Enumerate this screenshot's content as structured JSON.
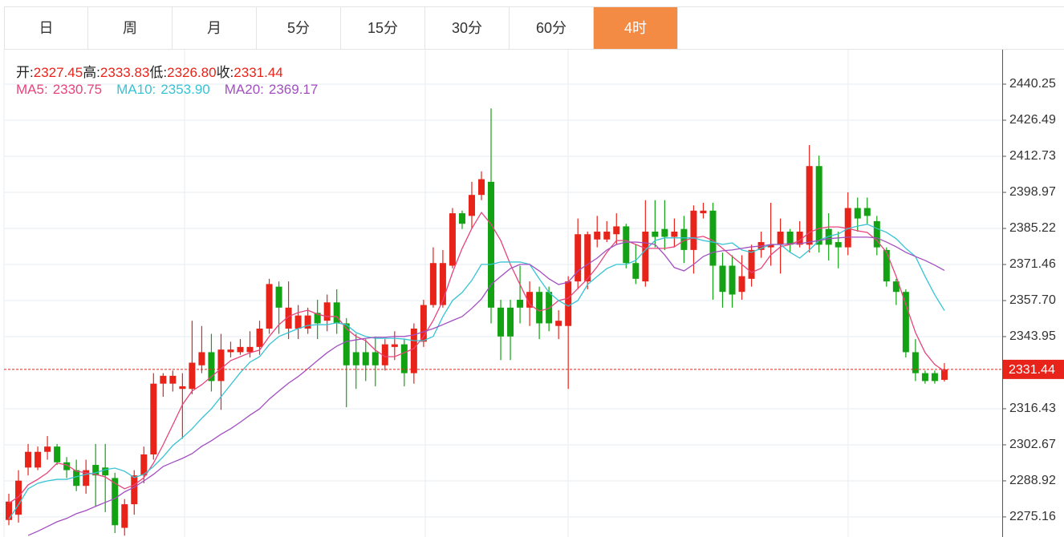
{
  "tabs": [
    "日",
    "周",
    "月",
    "5分",
    "15分",
    "30分",
    "60分",
    "4时"
  ],
  "active_tab": 7,
  "chart_data": {
    "type": "candlestick",
    "info": [
      {
        "label": "开:",
        "text": "2327.45"
      },
      {
        "label": "高:",
        "text": "2333.83"
      },
      {
        "label": "低:",
        "text": "2326.80"
      },
      {
        "label": "收:",
        "text": "2331.44"
      }
    ],
    "up_color": "#e8231a",
    "down_color": "#13a213",
    "ylim": [
      2267.5,
      2453.4
    ],
    "yticks": [
      2440.25,
      2426.49,
      2412.73,
      2398.97,
      2385.22,
      2371.46,
      {
        "value": 2357.7,
        "label": "2357.70"
      },
      2343.95,
      2316.43,
      2302.67,
      2288.92,
      2275.16
    ],
    "grid": true,
    "open": [
      2274,
      2276,
      2294,
      2294,
      2300,
      2302,
      2296,
      2293,
      2287,
      2295,
      2294,
      2290,
      2271,
      2280,
      2291,
      2299,
      2326,
      2326,
      2324,
      2324,
      2333,
      2338,
      2327,
      2338,
      2338,
      2338,
      2340,
      2347,
      2363,
      2347,
      2347,
      2347,
      2353,
      2350,
      2357,
      2349,
      2338,
      2338,
      2338,
      2333,
      2340,
      2341,
      2330,
      2342,
      2356,
      2356,
      2371,
      2391,
      2390,
      2398,
      2403,
      2355,
      2355,
      2358,
      2355,
      2361,
      2361,
      2348,
      2348,
      2365,
      2365,
      2381,
      2381,
      2383,
      2386,
      2372,
      2365,
      2384,
      2385,
      2382,
      2385,
      2377,
      2391,
      2392,
      2371,
      2371,
      2361,
      2366,
      2377,
      2378,
      2379,
      2384,
      2379,
      2379,
      2409,
      2385,
      2380,
      2378,
      2393,
      2393,
      2388,
      2377,
      2365,
      2361,
      2338,
      2330,
      2330,
      2327.45
    ],
    "high": [
      2284,
      2293,
      2303,
      2302,
      2306,
      2303,
      2298,
      2297,
      2297,
      2303,
      2303,
      2292,
      2282,
      2293,
      2302,
      2330,
      2330,
      2331,
      2330,
      2350,
      2348,
      2345,
      2345,
      2342,
      2343,
      2346,
      2350,
      2366,
      2365,
      2365,
      2356,
      2355,
      2358,
      2360,
      2362,
      2351,
      2345,
      2343,
      2344,
      2343,
      2346,
      2343,
      2349,
      2358,
      2378,
      2377,
      2393,
      2392,
      2403,
      2407,
      2431,
      2358,
      2358,
      2371,
      2365,
      2363,
      2363,
      2354,
      2367,
      2389,
      2384,
      2390,
      2388,
      2391,
      2387,
      2379,
      2396,
      2396,
      2396,
      2389,
      2390,
      2394,
      2395,
      2395,
      2376,
      2375,
      2375,
      2379,
      2384,
      2395,
      2389,
      2385,
      2388,
      2417,
      2413,
      2391,
      2384,
      2399,
      2397,
      2397,
      2390,
      2378,
      2366,
      2362,
      2343,
      2331,
      2331,
      2333.83
    ],
    "low": [
      2272,
      2273,
      2291,
      2293,
      2297,
      2295,
      2290,
      2285,
      2284,
      2279,
      2277,
      2269,
      2268,
      2276,
      2288,
      2297,
      2321,
      2323,
      2305,
      2322,
      2330,
      2323,
      2316,
      2336,
      2337,
      2336,
      2337,
      2345,
      2345,
      2343,
      2343,
      2345,
      2343,
      2346,
      2345,
      2317,
      2324,
      2327,
      2325,
      2331,
      2335,
      2325,
      2326,
      2340,
      2355,
      2355,
      2370,
      2385,
      2385,
      2396,
      2349,
      2335,
      2335,
      2349,
      2348,
      2343,
      2346,
      2343,
      2324,
      2362,
      2362,
      2378,
      2380,
      2379,
      2370,
      2364,
      2363,
      2378,
      2377,
      2378,
      2372,
      2368,
      2389,
      2358,
      2355,
      2355,
      2358,
      2363,
      2374,
      2371,
      2368,
      2376,
      2378,
      2376,
      2376,
      2373,
      2370,
      2375,
      2384,
      2387,
      2375,
      2363,
      2356,
      2336,
      2327,
      2326,
      2326,
      2326.8
    ],
    "close": [
      2281,
      2289,
      2300,
      2300,
      2302,
      2296,
      2293,
      2287,
      2293,
      2291,
      2291,
      2272,
      2280,
      2291,
      2299,
      2326,
      2329,
      2329,
      2325,
      2334,
      2338,
      2327,
      2339,
      2339,
      2340,
      2340,
      2347,
      2364,
      2355,
      2355,
      2352,
      2352,
      2349,
      2357,
      2349,
      2333,
      2333,
      2333,
      2333,
      2341,
      2341,
      2330,
      2347,
      2356,
      2372,
      2372,
      2391,
      2387,
      2398,
      2404,
      2355,
      2344,
      2344,
      2355,
      2361,
      2349,
      2349,
      2350,
      2365,
      2383,
      2383,
      2384,
      2384,
      2386,
      2372,
      2366,
      2384,
      2382,
      2382,
      2384,
      2377,
      2392,
      2392,
      2371,
      2361,
      2360,
      2367,
      2377,
      2380,
      2379,
      2384,
      2379,
      2384,
      2409,
      2379,
      2379,
      2378,
      2393,
      2389,
      2390,
      2378,
      2365,
      2361,
      2338,
      2330,
      2327,
      2327,
      2331.44
    ],
    "series": [
      {
        "name": "MA5:",
        "color": "#e8447c",
        "value_label": "2330.75",
        "values": [
          2280.4,
          2282.8,
          2287.4,
          2289.5,
          2292.0,
          2295.7,
          2295.0,
          2292.6,
          2292.0,
          2291.4,
          2290.4,
          2288.0,
          2285.9,
          2287.4,
          2290.1,
          2295.7,
          2302.7,
          2310.3,
          2318.0,
          2323.2,
          2325.6,
          2328.7,
          2331.7,
          2334.8,
          2336.3,
          2337.8,
          2338.8,
          2344.0,
          2348.5,
          2351.6,
          2353.1,
          2354.0,
          2352.5,
          2351.6,
          2351.6,
          2347.0,
          2344.0,
          2342.4,
          2338.8,
          2336.3,
          2336.3,
          2337.8,
          2339.4,
          2344.0,
          2350.1,
          2357.7,
          2368.4,
          2377.6,
          2385.2,
          2391.3,
          2386.8,
          2380.6,
          2371.5,
          2363.8,
          2356.2,
          2353.7,
          2354.7,
          2357.7,
          2358.6,
          2362.3,
          2366.0,
          2370.6,
          2376.1,
          2380.6,
          2380.6,
          2379.1,
          2377.6,
          2377.6,
          2377.6,
          2378.2,
          2380.6,
          2381.6,
          2382.2,
          2380.6,
          2377.6,
          2374.5,
          2371.5,
          2368.4,
          2370.0,
          2375.1,
          2378.2,
          2379.1,
          2380.6,
          2383.7,
          2385.2,
          2385.8,
          2385.8,
          2385.2,
          2384.3,
          2383.7,
          2380.6,
          2376.1,
          2366.9,
          2356.2,
          2345.5,
          2337.8,
          2333.3,
          2330.75
        ]
      },
      {
        "name": "MA10:",
        "color": "#36c3d3",
        "value_label": "2353.90",
        "values": [
          2274.3,
          2279.8,
          2285.9,
          2288.0,
          2288.9,
          2289.5,
          2289.5,
          2290.5,
          2291.4,
          2292.0,
          2293.2,
          2293.8,
          2292.6,
          2290.2,
          2291.4,
          2294.4,
          2298.1,
          2302.4,
          2305.4,
          2308.8,
          2312.8,
          2316.4,
          2321.0,
          2325.6,
          2330.2,
          2334.2,
          2336.3,
          2340.9,
          2344.0,
          2345.5,
          2347.0,
          2348.2,
          2348.5,
          2348.5,
          2349.2,
          2348.5,
          2345.5,
          2344.0,
          2343.3,
          2343.3,
          2343.3,
          2343.0,
          2342.4,
          2342.4,
          2344.0,
          2351.6,
          2357.7,
          2360.8,
          2365.4,
          2371.5,
          2371.5,
          2372.4,
          2372.4,
          2372.4,
          2371.5,
          2366.0,
          2360.8,
          2357.7,
          2355.6,
          2357.7,
          2363.8,
          2366.9,
          2369.9,
          2371.5,
          2371.5,
          2373.0,
          2377.0,
          2380.6,
          2381.6,
          2381.6,
          2381.6,
          2381.6,
          2380.6,
          2380.0,
          2379.1,
          2379.7,
          2377.0,
          2376.1,
          2377.6,
          2379.1,
          2379.1,
          2376.1,
          2373.9,
          2377.0,
          2380.6,
          2382.2,
          2383.1,
          2385.2,
          2386.1,
          2386.8,
          2385.2,
          2383.7,
          2381.3,
          2377.6,
          2374.5,
          2366.9,
          2359.9,
          2353.9
        ]
      },
      {
        "name": "MA20:",
        "color": "#a24fc0",
        "value_label": "2369.17",
        "values": [
          null,
          null,
          2268.1,
          2269.7,
          2271.5,
          2273.3,
          2274.6,
          2276.4,
          2277.6,
          2279.2,
          2280.7,
          2282.2,
          2284.7,
          2286.5,
          2288.9,
          2291.4,
          2294.4,
          2296.0,
          2297.5,
          2299.3,
          2302.1,
          2304.2,
          2306.7,
          2308.8,
          2311.3,
          2314.0,
          2316.4,
          2320.1,
          2323.2,
          2326.2,
          2328.7,
          2331.7,
          2334.8,
          2337.8,
          2340.3,
          2342.1,
          2342.7,
          2343.3,
          2343.7,
          2343.7,
          2344.0,
          2344.0,
          2344.6,
          2345.8,
          2347.0,
          2348.5,
          2350.1,
          2351.6,
          2354.7,
          2358.3,
          2363.8,
          2366.9,
          2369.9,
          2371.5,
          2371.5,
          2369.0,
          2366.0,
          2363.8,
          2364.7,
          2369.0,
          2371.5,
          2373.9,
          2377.0,
          2379.1,
          2380.0,
          2380.0,
          2379.7,
          2379.1,
          2375.1,
          2370.3,
          2369.0,
          2371.5,
          2374.5,
          2376.1,
          2376.7,
          2377.0,
          2377.6,
          2378.2,
          2378.5,
          2379.1,
          2379.1,
          2379.4,
          2379.4,
          2380.0,
          2380.6,
          2381.3,
          2381.6,
          2381.9,
          2381.9,
          2381.9,
          2381.6,
          2380.0,
          2378.2,
          2376.1,
          2374.5,
          2373.0,
          2371.2,
          2369.17
        ]
      }
    ]
  }
}
